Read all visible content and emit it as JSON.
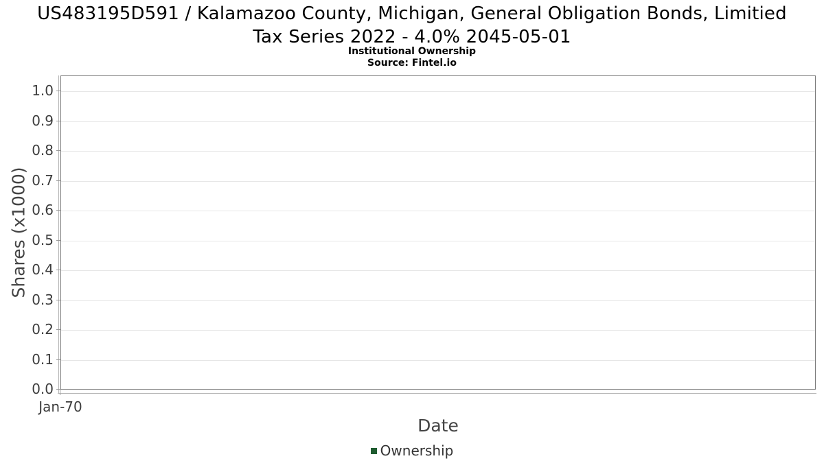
{
  "header": {
    "title_line1": "US483195D591 / Kalamazoo County, Michigan, General Obligation Bonds, Limitied",
    "title_line2": "Tax Series 2022 - 4.0% 2045-05-01",
    "subtitle": "Institutional Ownership",
    "source": "Source: Fintel.io"
  },
  "chart_data": {
    "type": "line",
    "title": "US483195D591 / Kalamazoo County, Michigan, General Obligation Bonds, Limitied Tax Series 2022 - 4.0% 2045-05-01",
    "subtitle": "Institutional Ownership",
    "source": "Source: Fintel.io",
    "xlabel": "Date",
    "ylabel": "Shares (x1000)",
    "x_ticks": [
      "Jan-70"
    ],
    "y_ticks": [
      "0.0",
      "0.1",
      "0.2",
      "0.3",
      "0.4",
      "0.5",
      "0.6",
      "0.7",
      "0.8",
      "0.9",
      "1.0"
    ],
    "ylim": [
      0,
      1.05
    ],
    "grid": true,
    "grid_color": "#e6e6e6",
    "legend_position": "bottom",
    "series": [
      {
        "name": "Ownership",
        "color": "#1f5c30",
        "x": [],
        "values": []
      }
    ]
  }
}
